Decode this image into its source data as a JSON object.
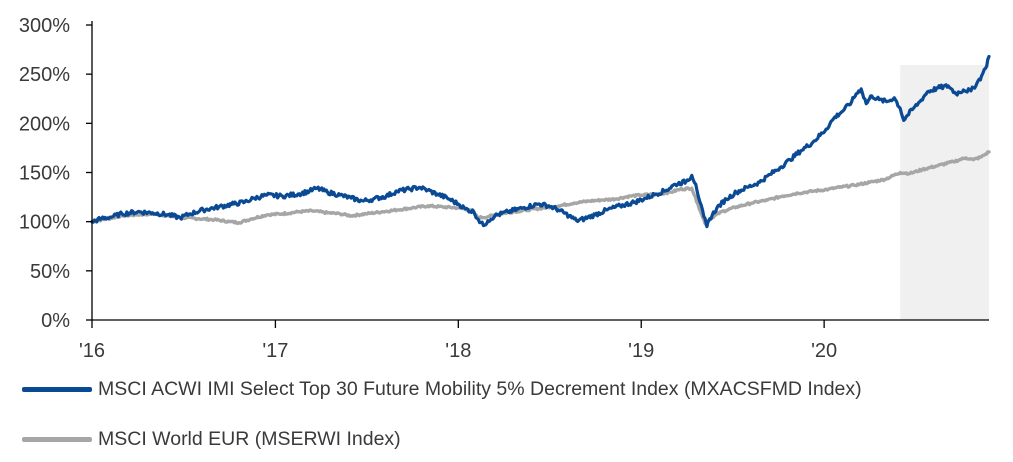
{
  "chart_data": {
    "type": "line",
    "title": "",
    "xlabel": "",
    "ylabel": "",
    "x_domain": [
      "2016-01-01",
      "2020-11-25"
    ],
    "xticks": [
      {
        "date": "2016-01-01",
        "label": "'16"
      },
      {
        "date": "2017-01-01",
        "label": "'17"
      },
      {
        "date": "2018-01-01",
        "label": "'18"
      },
      {
        "date": "2019-01-01",
        "label": "'19"
      },
      {
        "date": "2020-01-01",
        "label": "'20"
      }
    ],
    "ylim": [
      0,
      300
    ],
    "yticks": [
      0,
      50,
      100,
      150,
      200,
      250,
      300
    ],
    "ytick_labels": [
      "0%",
      "50%",
      "100%",
      "150%",
      "200%",
      "250%",
      "300%"
    ],
    "grid": false,
    "shaded_period": {
      "start": "2020-06-01",
      "end": "2020-11-25",
      "color": "#f0f0f0"
    },
    "series": [
      {
        "name": "MSCI ACWI IMI Select Top 30 Future Mobility 5% Decrement Index (MXACSFMD Index)",
        "color": "#0a4a95",
        "points": [
          [
            "2016-01-01",
            100
          ],
          [
            "2016-01-20",
            103
          ],
          [
            "2016-02-10",
            105
          ],
          [
            "2016-03-01",
            108
          ],
          [
            "2016-04-01",
            110
          ],
          [
            "2016-05-01",
            109
          ],
          [
            "2016-06-01",
            107
          ],
          [
            "2016-06-25",
            104
          ],
          [
            "2016-07-15",
            108
          ],
          [
            "2016-08-10",
            112
          ],
          [
            "2016-09-10",
            115
          ],
          [
            "2016-10-10",
            118
          ],
          [
            "2016-11-01",
            120
          ],
          [
            "2016-11-20",
            124
          ],
          [
            "2016-12-15",
            127
          ],
          [
            "2017-01-15",
            126
          ],
          [
            "2017-02-15",
            128
          ],
          [
            "2017-03-10",
            131
          ],
          [
            "2017-03-25",
            134
          ],
          [
            "2017-04-15",
            130
          ],
          [
            "2017-05-10",
            127
          ],
          [
            "2017-06-01",
            124
          ],
          [
            "2017-06-25",
            121
          ],
          [
            "2017-07-15",
            123
          ],
          [
            "2017-08-10",
            126
          ],
          [
            "2017-09-01",
            131
          ],
          [
            "2017-09-25",
            133
          ],
          [
            "2017-10-15",
            135
          ],
          [
            "2017-11-01",
            132
          ],
          [
            "2017-11-20",
            128
          ],
          [
            "2017-12-10",
            124
          ],
          [
            "2018-01-01",
            118
          ],
          [
            "2018-01-15",
            113
          ],
          [
            "2018-02-01",
            110
          ],
          [
            "2018-02-10",
            102
          ],
          [
            "2018-02-20",
            96
          ],
          [
            "2018-03-01",
            101
          ],
          [
            "2018-03-15",
            106
          ],
          [
            "2018-04-10",
            110
          ],
          [
            "2018-05-10",
            114
          ],
          [
            "2018-06-10",
            118
          ],
          [
            "2018-07-01",
            116
          ],
          [
            "2018-07-20",
            112
          ],
          [
            "2018-08-10",
            106
          ],
          [
            "2018-08-25",
            101
          ],
          [
            "2018-09-10",
            103
          ],
          [
            "2018-10-01",
            107
          ],
          [
            "2018-10-25",
            112
          ],
          [
            "2018-11-20",
            116
          ],
          [
            "2018-12-20",
            120
          ],
          [
            "2019-01-10",
            124
          ],
          [
            "2019-01-30",
            128
          ],
          [
            "2019-02-20",
            132
          ],
          [
            "2019-03-10",
            138
          ],
          [
            "2019-04-01",
            141
          ],
          [
            "2019-04-12",
            147
          ],
          [
            "2019-04-20",
            138
          ],
          [
            "2019-04-28",
            120
          ],
          [
            "2019-05-06",
            105
          ],
          [
            "2019-05-12",
            95
          ],
          [
            "2019-05-18",
            103
          ],
          [
            "2019-06-01",
            114
          ],
          [
            "2019-06-20",
            123
          ],
          [
            "2019-07-10",
            130
          ],
          [
            "2019-08-01",
            135
          ],
          [
            "2019-08-25",
            140
          ],
          [
            "2019-09-15",
            148
          ],
          [
            "2019-10-05",
            155
          ],
          [
            "2019-10-25",
            163
          ],
          [
            "2019-11-15",
            172
          ],
          [
            "2019-12-10",
            181
          ],
          [
            "2020-01-05",
            194
          ],
          [
            "2020-01-20",
            205
          ],
          [
            "2020-02-10",
            214
          ],
          [
            "2020-02-25",
            222
          ],
          [
            "2020-03-05",
            230
          ],
          [
            "2020-03-15",
            235
          ],
          [
            "2020-03-25",
            220
          ],
          [
            "2020-04-05",
            228
          ],
          [
            "2020-04-20",
            224
          ],
          [
            "2020-05-05",
            222
          ],
          [
            "2020-05-20",
            226
          ],
          [
            "2020-06-01",
            215
          ],
          [
            "2020-06-08",
            203
          ],
          [
            "2020-06-15",
            208
          ],
          [
            "2020-06-25",
            214
          ],
          [
            "2020-07-10",
            222
          ],
          [
            "2020-07-25",
            232
          ],
          [
            "2020-08-15",
            236
          ],
          [
            "2020-09-05",
            238
          ],
          [
            "2020-09-20",
            230
          ],
          [
            "2020-10-05",
            234
          ],
          [
            "2020-10-20",
            233
          ],
          [
            "2020-11-01",
            241
          ],
          [
            "2020-11-10",
            248
          ],
          [
            "2020-11-18",
            256
          ],
          [
            "2020-11-25",
            268
          ]
        ]
      },
      {
        "name": "MSCI World EUR (MSERWI Index)",
        "color": "#a6a6a6",
        "points": [
          [
            "2016-01-01",
            100
          ],
          [
            "2016-02-01",
            103
          ],
          [
            "2016-03-01",
            106
          ],
          [
            "2016-04-01",
            107
          ],
          [
            "2016-05-01",
            108
          ],
          [
            "2016-06-01",
            106
          ],
          [
            "2016-07-01",
            104
          ],
          [
            "2016-08-01",
            103
          ],
          [
            "2016-09-01",
            102
          ],
          [
            "2016-10-01",
            100
          ],
          [
            "2016-10-20",
            99
          ],
          [
            "2016-11-15",
            103
          ],
          [
            "2016-12-15",
            107
          ],
          [
            "2017-01-15",
            108
          ],
          [
            "2017-02-15",
            110
          ],
          [
            "2017-03-15",
            111
          ],
          [
            "2017-04-15",
            109
          ],
          [
            "2017-05-10",
            108
          ],
          [
            "2017-06-01",
            106
          ],
          [
            "2017-07-01",
            108
          ],
          [
            "2017-08-01",
            110
          ],
          [
            "2017-09-01",
            112
          ],
          [
            "2017-10-01",
            114
          ],
          [
            "2017-11-01",
            116
          ],
          [
            "2017-12-01",
            115
          ],
          [
            "2018-01-01",
            114
          ],
          [
            "2018-01-25",
            112
          ],
          [
            "2018-02-10",
            104
          ],
          [
            "2018-03-01",
            105
          ],
          [
            "2018-03-25",
            108
          ],
          [
            "2018-04-20",
            110
          ],
          [
            "2018-05-20",
            112
          ],
          [
            "2018-06-20",
            114
          ],
          [
            "2018-07-20",
            116
          ],
          [
            "2018-08-20",
            119
          ],
          [
            "2018-09-20",
            121
          ],
          [
            "2018-10-15",
            122
          ],
          [
            "2018-11-10",
            123
          ],
          [
            "2018-12-10",
            126
          ],
          [
            "2019-01-01",
            127
          ],
          [
            "2019-02-01",
            128
          ],
          [
            "2019-03-01",
            130
          ],
          [
            "2019-03-20",
            133
          ],
          [
            "2019-04-12",
            134
          ],
          [
            "2019-04-24",
            118
          ],
          [
            "2019-05-04",
            104
          ],
          [
            "2019-05-10",
            97
          ],
          [
            "2019-05-18",
            103
          ],
          [
            "2019-06-10",
            110
          ],
          [
            "2019-07-10",
            115
          ],
          [
            "2019-08-10",
            119
          ],
          [
            "2019-09-10",
            122
          ],
          [
            "2019-10-10",
            126
          ],
          [
            "2019-11-10",
            129
          ],
          [
            "2019-12-10",
            131
          ],
          [
            "2020-01-10",
            133
          ],
          [
            "2020-02-01",
            135
          ],
          [
            "2020-03-01",
            137
          ],
          [
            "2020-04-01",
            140
          ],
          [
            "2020-05-01",
            143
          ],
          [
            "2020-06-01",
            150
          ],
          [
            "2020-06-20",
            149
          ],
          [
            "2020-07-15",
            153
          ],
          [
            "2020-08-15",
            157
          ],
          [
            "2020-09-15",
            161
          ],
          [
            "2020-10-10",
            165
          ],
          [
            "2020-10-25",
            163
          ],
          [
            "2020-11-10",
            166
          ],
          [
            "2020-11-25",
            171
          ]
        ]
      }
    ]
  },
  "legend": {
    "items": [
      {
        "label": "MSCI ACWI IMI Select Top 30 Future Mobility 5% Decrement Index (MXACSFMD Index)",
        "color": "#0a4a95"
      },
      {
        "label": "MSCI World EUR (MSERWI Index)",
        "color": "#a6a6a6"
      }
    ]
  }
}
